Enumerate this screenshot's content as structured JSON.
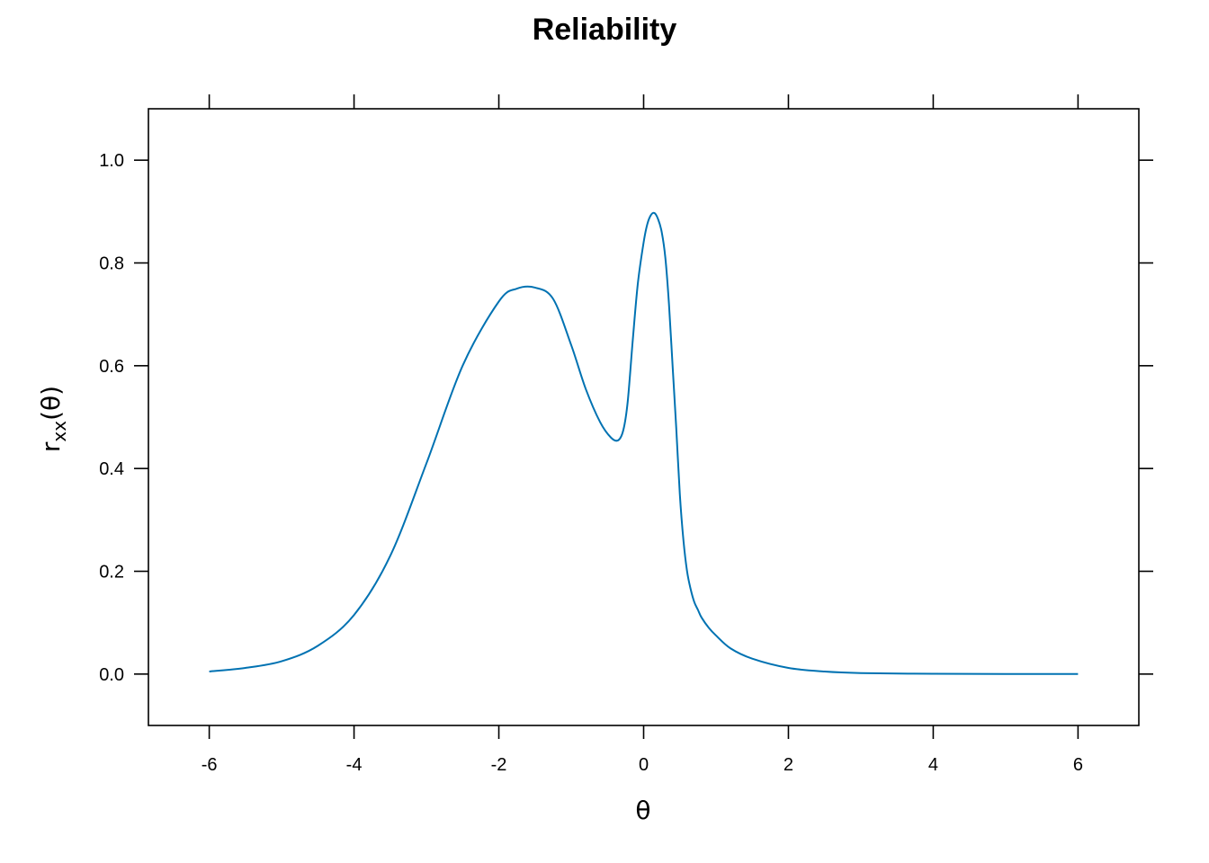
{
  "chart_data": {
    "type": "line",
    "title": "Reliability",
    "xlabel": "θ",
    "ylabel": {
      "base": "r",
      "sub": "xx",
      "rest": "(θ)"
    },
    "xlim": [
      -6.84,
      6.84
    ],
    "ylim": [
      -0.1,
      1.1
    ],
    "xticks": [
      -6,
      -4,
      -2,
      0,
      2,
      4,
      6
    ],
    "xtick_labels": [
      "-6",
      "-4",
      "-2",
      "0",
      "2",
      "4",
      "6"
    ],
    "yticks": [
      0.0,
      0.2,
      0.4,
      0.6,
      0.8,
      1.0
    ],
    "ytick_labels": [
      "0.0",
      "0.2",
      "0.4",
      "0.6",
      "0.8",
      "1.0"
    ],
    "grid": false,
    "line_color": "#0072B2",
    "series": [
      {
        "x": [
          -6.0,
          -5.5,
          -5.0,
          -4.5,
          -4.0,
          -3.5,
          -3.0,
          -2.5,
          -2.0,
          -1.75,
          -1.5,
          -1.25,
          -1.0,
          -0.8,
          -0.6,
          -0.45,
          -0.35,
          -0.28,
          -0.22,
          -0.15,
          -0.08,
          0.0,
          0.05,
          0.1,
          0.15,
          0.2,
          0.25,
          0.3,
          0.35,
          0.4,
          0.45,
          0.5,
          0.55,
          0.6,
          0.65,
          0.7,
          0.75,
          0.8,
          0.9,
          1.0,
          1.2,
          1.5,
          2.0,
          2.5,
          3.0,
          4.0,
          5.0,
          6.0
        ],
        "y": [
          0.005,
          0.012,
          0.025,
          0.055,
          0.115,
          0.23,
          0.41,
          0.6,
          0.725,
          0.75,
          0.752,
          0.73,
          0.64,
          0.555,
          0.49,
          0.46,
          0.455,
          0.475,
          0.53,
          0.65,
          0.76,
          0.84,
          0.875,
          0.893,
          0.897,
          0.885,
          0.86,
          0.81,
          0.72,
          0.6,
          0.48,
          0.35,
          0.26,
          0.2,
          0.165,
          0.14,
          0.125,
          0.11,
          0.09,
          0.075,
          0.05,
          0.03,
          0.012,
          0.005,
          0.002,
          0.0005,
          0.0002,
          0.0001
        ]
      }
    ]
  }
}
